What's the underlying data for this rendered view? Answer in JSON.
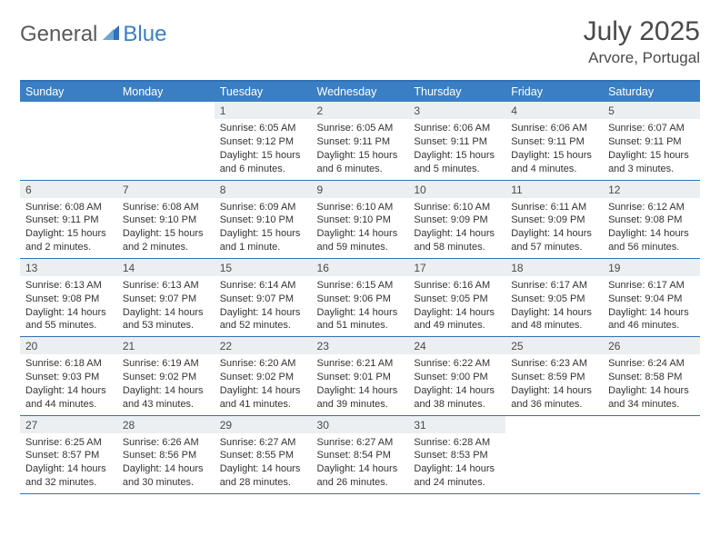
{
  "brand": {
    "text1": "General",
    "text2": "Blue"
  },
  "header": {
    "title": "July 2025",
    "location": "Arvore, Portugal"
  },
  "colors": {
    "header_bg": "#3a7fc4",
    "header_text": "#ffffff",
    "daynum_bg": "#eceff1",
    "border": "#2f71b6",
    "body_text": "#333333",
    "title_text": "#4a4a4a"
  },
  "dow": [
    "Sunday",
    "Monday",
    "Tuesday",
    "Wednesday",
    "Thursday",
    "Friday",
    "Saturday"
  ],
  "weeks": [
    [
      null,
      null,
      {
        "n": "1",
        "sr": "6:05 AM",
        "ss": "9:12 PM",
        "dl": "15 hours and 6 minutes."
      },
      {
        "n": "2",
        "sr": "6:05 AM",
        "ss": "9:11 PM",
        "dl": "15 hours and 6 minutes."
      },
      {
        "n": "3",
        "sr": "6:06 AM",
        "ss": "9:11 PM",
        "dl": "15 hours and 5 minutes."
      },
      {
        "n": "4",
        "sr": "6:06 AM",
        "ss": "9:11 PM",
        "dl": "15 hours and 4 minutes."
      },
      {
        "n": "5",
        "sr": "6:07 AM",
        "ss": "9:11 PM",
        "dl": "15 hours and 3 minutes."
      }
    ],
    [
      {
        "n": "6",
        "sr": "6:08 AM",
        "ss": "9:11 PM",
        "dl": "15 hours and 2 minutes."
      },
      {
        "n": "7",
        "sr": "6:08 AM",
        "ss": "9:10 PM",
        "dl": "15 hours and 2 minutes."
      },
      {
        "n": "8",
        "sr": "6:09 AM",
        "ss": "9:10 PM",
        "dl": "15 hours and 1 minute."
      },
      {
        "n": "9",
        "sr": "6:10 AM",
        "ss": "9:10 PM",
        "dl": "14 hours and 59 minutes."
      },
      {
        "n": "10",
        "sr": "6:10 AM",
        "ss": "9:09 PM",
        "dl": "14 hours and 58 minutes."
      },
      {
        "n": "11",
        "sr": "6:11 AM",
        "ss": "9:09 PM",
        "dl": "14 hours and 57 minutes."
      },
      {
        "n": "12",
        "sr": "6:12 AM",
        "ss": "9:08 PM",
        "dl": "14 hours and 56 minutes."
      }
    ],
    [
      {
        "n": "13",
        "sr": "6:13 AM",
        "ss": "9:08 PM",
        "dl": "14 hours and 55 minutes."
      },
      {
        "n": "14",
        "sr": "6:13 AM",
        "ss": "9:07 PM",
        "dl": "14 hours and 53 minutes."
      },
      {
        "n": "15",
        "sr": "6:14 AM",
        "ss": "9:07 PM",
        "dl": "14 hours and 52 minutes."
      },
      {
        "n": "16",
        "sr": "6:15 AM",
        "ss": "9:06 PM",
        "dl": "14 hours and 51 minutes."
      },
      {
        "n": "17",
        "sr": "6:16 AM",
        "ss": "9:05 PM",
        "dl": "14 hours and 49 minutes."
      },
      {
        "n": "18",
        "sr": "6:17 AM",
        "ss": "9:05 PM",
        "dl": "14 hours and 48 minutes."
      },
      {
        "n": "19",
        "sr": "6:17 AM",
        "ss": "9:04 PM",
        "dl": "14 hours and 46 minutes."
      }
    ],
    [
      {
        "n": "20",
        "sr": "6:18 AM",
        "ss": "9:03 PM",
        "dl": "14 hours and 44 minutes."
      },
      {
        "n": "21",
        "sr": "6:19 AM",
        "ss": "9:02 PM",
        "dl": "14 hours and 43 minutes."
      },
      {
        "n": "22",
        "sr": "6:20 AM",
        "ss": "9:02 PM",
        "dl": "14 hours and 41 minutes."
      },
      {
        "n": "23",
        "sr": "6:21 AM",
        "ss": "9:01 PM",
        "dl": "14 hours and 39 minutes."
      },
      {
        "n": "24",
        "sr": "6:22 AM",
        "ss": "9:00 PM",
        "dl": "14 hours and 38 minutes."
      },
      {
        "n": "25",
        "sr": "6:23 AM",
        "ss": "8:59 PM",
        "dl": "14 hours and 36 minutes."
      },
      {
        "n": "26",
        "sr": "6:24 AM",
        "ss": "8:58 PM",
        "dl": "14 hours and 34 minutes."
      }
    ],
    [
      {
        "n": "27",
        "sr": "6:25 AM",
        "ss": "8:57 PM",
        "dl": "14 hours and 32 minutes."
      },
      {
        "n": "28",
        "sr": "6:26 AM",
        "ss": "8:56 PM",
        "dl": "14 hours and 30 minutes."
      },
      {
        "n": "29",
        "sr": "6:27 AM",
        "ss": "8:55 PM",
        "dl": "14 hours and 28 minutes."
      },
      {
        "n": "30",
        "sr": "6:27 AM",
        "ss": "8:54 PM",
        "dl": "14 hours and 26 minutes."
      },
      {
        "n": "31",
        "sr": "6:28 AM",
        "ss": "8:53 PM",
        "dl": "14 hours and 24 minutes."
      },
      null,
      null
    ]
  ],
  "labels": {
    "sunrise": "Sunrise:",
    "sunset": "Sunset:",
    "daylight": "Daylight:"
  }
}
